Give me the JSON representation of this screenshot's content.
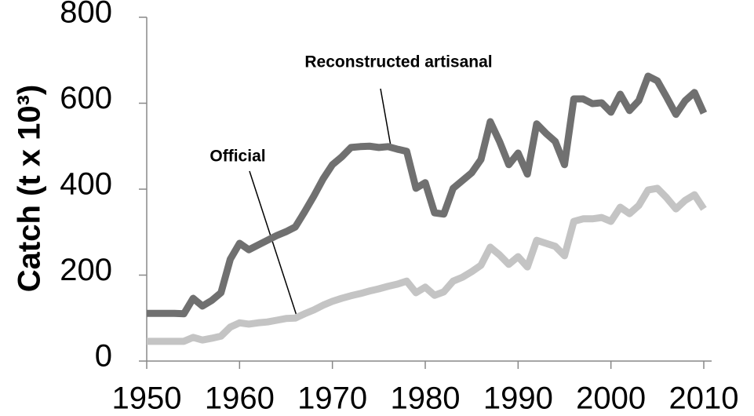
{
  "chart_data": {
    "type": "line",
    "y_label": "Catch (t x 10³)",
    "annotations": [
      "Reconstructed artisanal",
      "Official"
    ],
    "x": [
      1950,
      1951,
      1952,
      1953,
      1954,
      1955,
      1956,
      1957,
      1958,
      1959,
      1960,
      1961,
      1962,
      1963,
      1964,
      1965,
      1966,
      1967,
      1968,
      1969,
      1970,
      1971,
      1972,
      1973,
      1974,
      1975,
      1976,
      1977,
      1978,
      1979,
      1980,
      1981,
      1982,
      1983,
      1984,
      1985,
      1986,
      1987,
      1988,
      1989,
      1990,
      1991,
      1992,
      1993,
      1994,
      1995,
      1996,
      1997,
      1998,
      1999,
      2000,
      2001,
      2002,
      2003,
      2004,
      2005,
      2006,
      2007,
      2008,
      2009,
      2010
    ],
    "series": [
      {
        "name": "Reconstructed artisanal",
        "color": "#707070",
        "values": [
          111,
          111,
          111,
          111,
          110,
          146,
          128,
          141,
          159,
          237,
          274,
          259,
          270,
          281,
          292,
          301,
          312,
          347,
          384,
          424,
          457,
          475,
          497,
          499,
          500,
          497,
          499,
          493,
          488,
          402,
          415,
          345,
          342,
          402,
          420,
          438,
          469,
          557,
          511,
          457,
          484,
          435,
          552,
          530,
          511,
          457,
          610,
          610,
          599,
          601,
          579,
          621,
          583,
          606,
          663,
          652,
          614,
          574,
          606,
          625,
          577
        ]
      },
      {
        "name": "Official",
        "color": "#c4c4c4",
        "values": [
          46,
          46,
          46,
          46,
          46,
          55,
          49,
          53,
          58,
          79,
          89,
          86,
          89,
          91,
          95,
          99,
          100,
          110,
          119,
          130,
          139,
          146,
          152,
          157,
          163,
          168,
          174,
          179,
          186,
          159,
          172,
          153,
          161,
          186,
          195,
          208,
          223,
          265,
          247,
          225,
          243,
          219,
          281,
          274,
          267,
          245,
          325,
          331,
          331,
          334,
          325,
          358,
          343,
          362,
          398,
          402,
          380,
          354,
          374,
          387,
          354
        ]
      }
    ],
    "xlim": [
      1950,
      2010
    ],
    "xticks": [
      1950,
      1960,
      1970,
      1980,
      1990,
      2000,
      2010
    ],
    "ylim": [
      0,
      800
    ],
    "yticks": [
      0,
      200,
      400,
      600,
      800
    ],
    "grid": false
  }
}
